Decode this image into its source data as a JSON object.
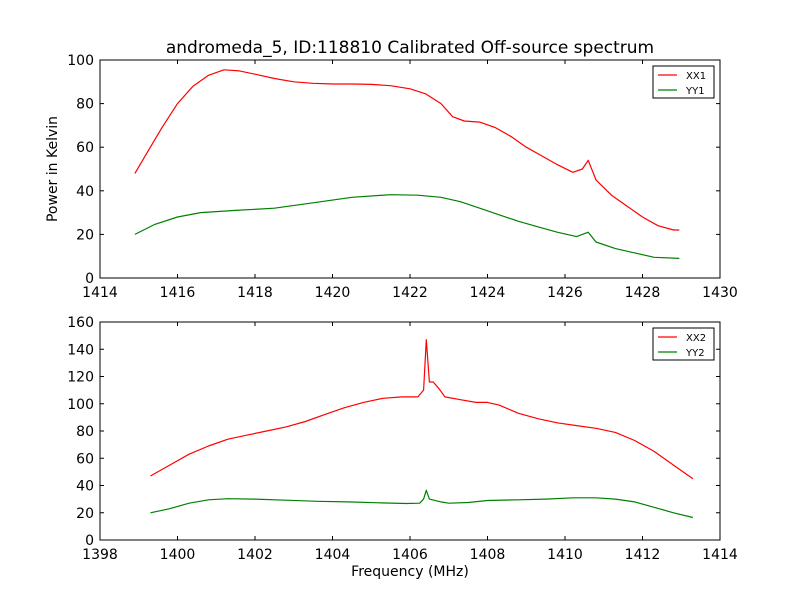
{
  "figure": {
    "title": "andromeda_5, ID:118810 Calibrated Off-source spectrum",
    "ylabel": "Power in Kelvin",
    "xlabel": "Frequency (MHz)"
  },
  "chart_data": [
    {
      "type": "line",
      "xlim": [
        1414,
        1430
      ],
      "ylim": [
        0,
        100
      ],
      "xticks": [
        1414,
        1416,
        1418,
        1420,
        1422,
        1424,
        1426,
        1428,
        1430
      ],
      "yticks": [
        0,
        20,
        40,
        60,
        80,
        100
      ],
      "legend_position": "top-right",
      "grid": false,
      "series": [
        {
          "name": "XX1",
          "color": "#ff0000",
          "points": [
            [
              1414.9,
              48
            ],
            [
              1415.2,
              57
            ],
            [
              1415.6,
              69
            ],
            [
              1416.0,
              80
            ],
            [
              1416.4,
              88
            ],
            [
              1416.8,
              93
            ],
            [
              1417.2,
              95.5
            ],
            [
              1417.6,
              95
            ],
            [
              1418.0,
              93.5
            ],
            [
              1418.5,
              91.5
            ],
            [
              1419.0,
              90
            ],
            [
              1419.5,
              89.3
            ],
            [
              1420.0,
              89
            ],
            [
              1420.5,
              89
            ],
            [
              1421.0,
              88.8
            ],
            [
              1421.5,
              88.2
            ],
            [
              1422.0,
              86.8
            ],
            [
              1422.4,
              84.5
            ],
            [
              1422.8,
              80
            ],
            [
              1423.1,
              74
            ],
            [
              1423.4,
              72
            ],
            [
              1423.8,
              71.5
            ],
            [
              1424.2,
              69
            ],
            [
              1424.6,
              65
            ],
            [
              1425.0,
              60
            ],
            [
              1425.4,
              56
            ],
            [
              1425.8,
              52
            ],
            [
              1426.2,
              48.5
            ],
            [
              1426.45,
              50
            ],
            [
              1426.6,
              54
            ],
            [
              1426.8,
              45
            ],
            [
              1427.2,
              38
            ],
            [
              1427.6,
              33
            ],
            [
              1428.0,
              28
            ],
            [
              1428.4,
              24
            ],
            [
              1428.8,
              22
            ],
            [
              1428.95,
              22
            ]
          ]
        },
        {
          "name": "YY1",
          "color": "#008000",
          "points": [
            [
              1414.9,
              20
            ],
            [
              1415.4,
              24.5
            ],
            [
              1416.0,
              28
            ],
            [
              1416.6,
              30
            ],
            [
              1417.5,
              31
            ],
            [
              1418.5,
              32
            ],
            [
              1419.5,
              34.5
            ],
            [
              1420.5,
              37
            ],
            [
              1421.5,
              38.2
            ],
            [
              1422.2,
              38
            ],
            [
              1422.8,
              37
            ],
            [
              1423.3,
              35
            ],
            [
              1423.8,
              32
            ],
            [
              1424.3,
              29
            ],
            [
              1424.8,
              26
            ],
            [
              1425.3,
              23.5
            ],
            [
              1425.8,
              21
            ],
            [
              1426.3,
              19
            ],
            [
              1426.6,
              21
            ],
            [
              1426.8,
              16.5
            ],
            [
              1427.3,
              13.5
            ],
            [
              1427.8,
              11.5
            ],
            [
              1428.3,
              9.5
            ],
            [
              1428.95,
              9
            ]
          ]
        }
      ]
    },
    {
      "type": "line",
      "xlim": [
        1398,
        1414
      ],
      "ylim": [
        0,
        160
      ],
      "xticks": [
        1398,
        1400,
        1402,
        1404,
        1406,
        1408,
        1410,
        1412,
        1414
      ],
      "yticks": [
        0,
        20,
        40,
        60,
        80,
        100,
        120,
        140,
        160
      ],
      "legend_position": "top-right",
      "grid": false,
      "series": [
        {
          "name": "XX2",
          "color": "#ff0000",
          "points": [
            [
              1399.3,
              47
            ],
            [
              1399.8,
              55
            ],
            [
              1400.3,
              63
            ],
            [
              1400.8,
              69
            ],
            [
              1401.3,
              74
            ],
            [
              1401.8,
              77
            ],
            [
              1402.3,
              80
            ],
            [
              1402.8,
              83
            ],
            [
              1403.3,
              87
            ],
            [
              1403.8,
              92
            ],
            [
              1404.3,
              97
            ],
            [
              1404.8,
              101
            ],
            [
              1405.3,
              104
            ],
            [
              1405.8,
              105
            ],
            [
              1406.2,
              105
            ],
            [
              1406.35,
              110
            ],
            [
              1406.42,
              147
            ],
            [
              1406.5,
              116
            ],
            [
              1406.6,
              116
            ],
            [
              1406.75,
              111
            ],
            [
              1406.9,
              105
            ],
            [
              1407.3,
              103
            ],
            [
              1407.7,
              101
            ],
            [
              1408.0,
              101
            ],
            [
              1408.3,
              99
            ],
            [
              1408.8,
              93
            ],
            [
              1409.3,
              89
            ],
            [
              1409.8,
              86
            ],
            [
              1410.3,
              84
            ],
            [
              1410.8,
              82
            ],
            [
              1411.3,
              79
            ],
            [
              1411.8,
              73
            ],
            [
              1412.3,
              65
            ],
            [
              1412.8,
              55
            ],
            [
              1413.3,
              45
            ]
          ]
        },
        {
          "name": "YY2",
          "color": "#008000",
          "points": [
            [
              1399.3,
              20
            ],
            [
              1399.8,
              23
            ],
            [
              1400.3,
              27
            ],
            [
              1400.8,
              29.5
            ],
            [
              1401.3,
              30.3
            ],
            [
              1402.0,
              30
            ],
            [
              1402.8,
              29.2
            ],
            [
              1403.6,
              28.4
            ],
            [
              1404.4,
              28
            ],
            [
              1405.2,
              27.3
            ],
            [
              1405.9,
              26.8
            ],
            [
              1406.25,
              27
            ],
            [
              1406.35,
              30
            ],
            [
              1406.42,
              36.5
            ],
            [
              1406.5,
              30
            ],
            [
              1406.8,
              28
            ],
            [
              1407.0,
              27
            ],
            [
              1407.5,
              27.5
            ],
            [
              1408.0,
              29
            ],
            [
              1408.8,
              29.5
            ],
            [
              1409.5,
              30
            ],
            [
              1410.2,
              31
            ],
            [
              1410.8,
              31
            ],
            [
              1411.3,
              30
            ],
            [
              1411.8,
              28
            ],
            [
              1412.3,
              24
            ],
            [
              1412.8,
              20
            ],
            [
              1413.3,
              16.5
            ]
          ]
        }
      ]
    }
  ]
}
